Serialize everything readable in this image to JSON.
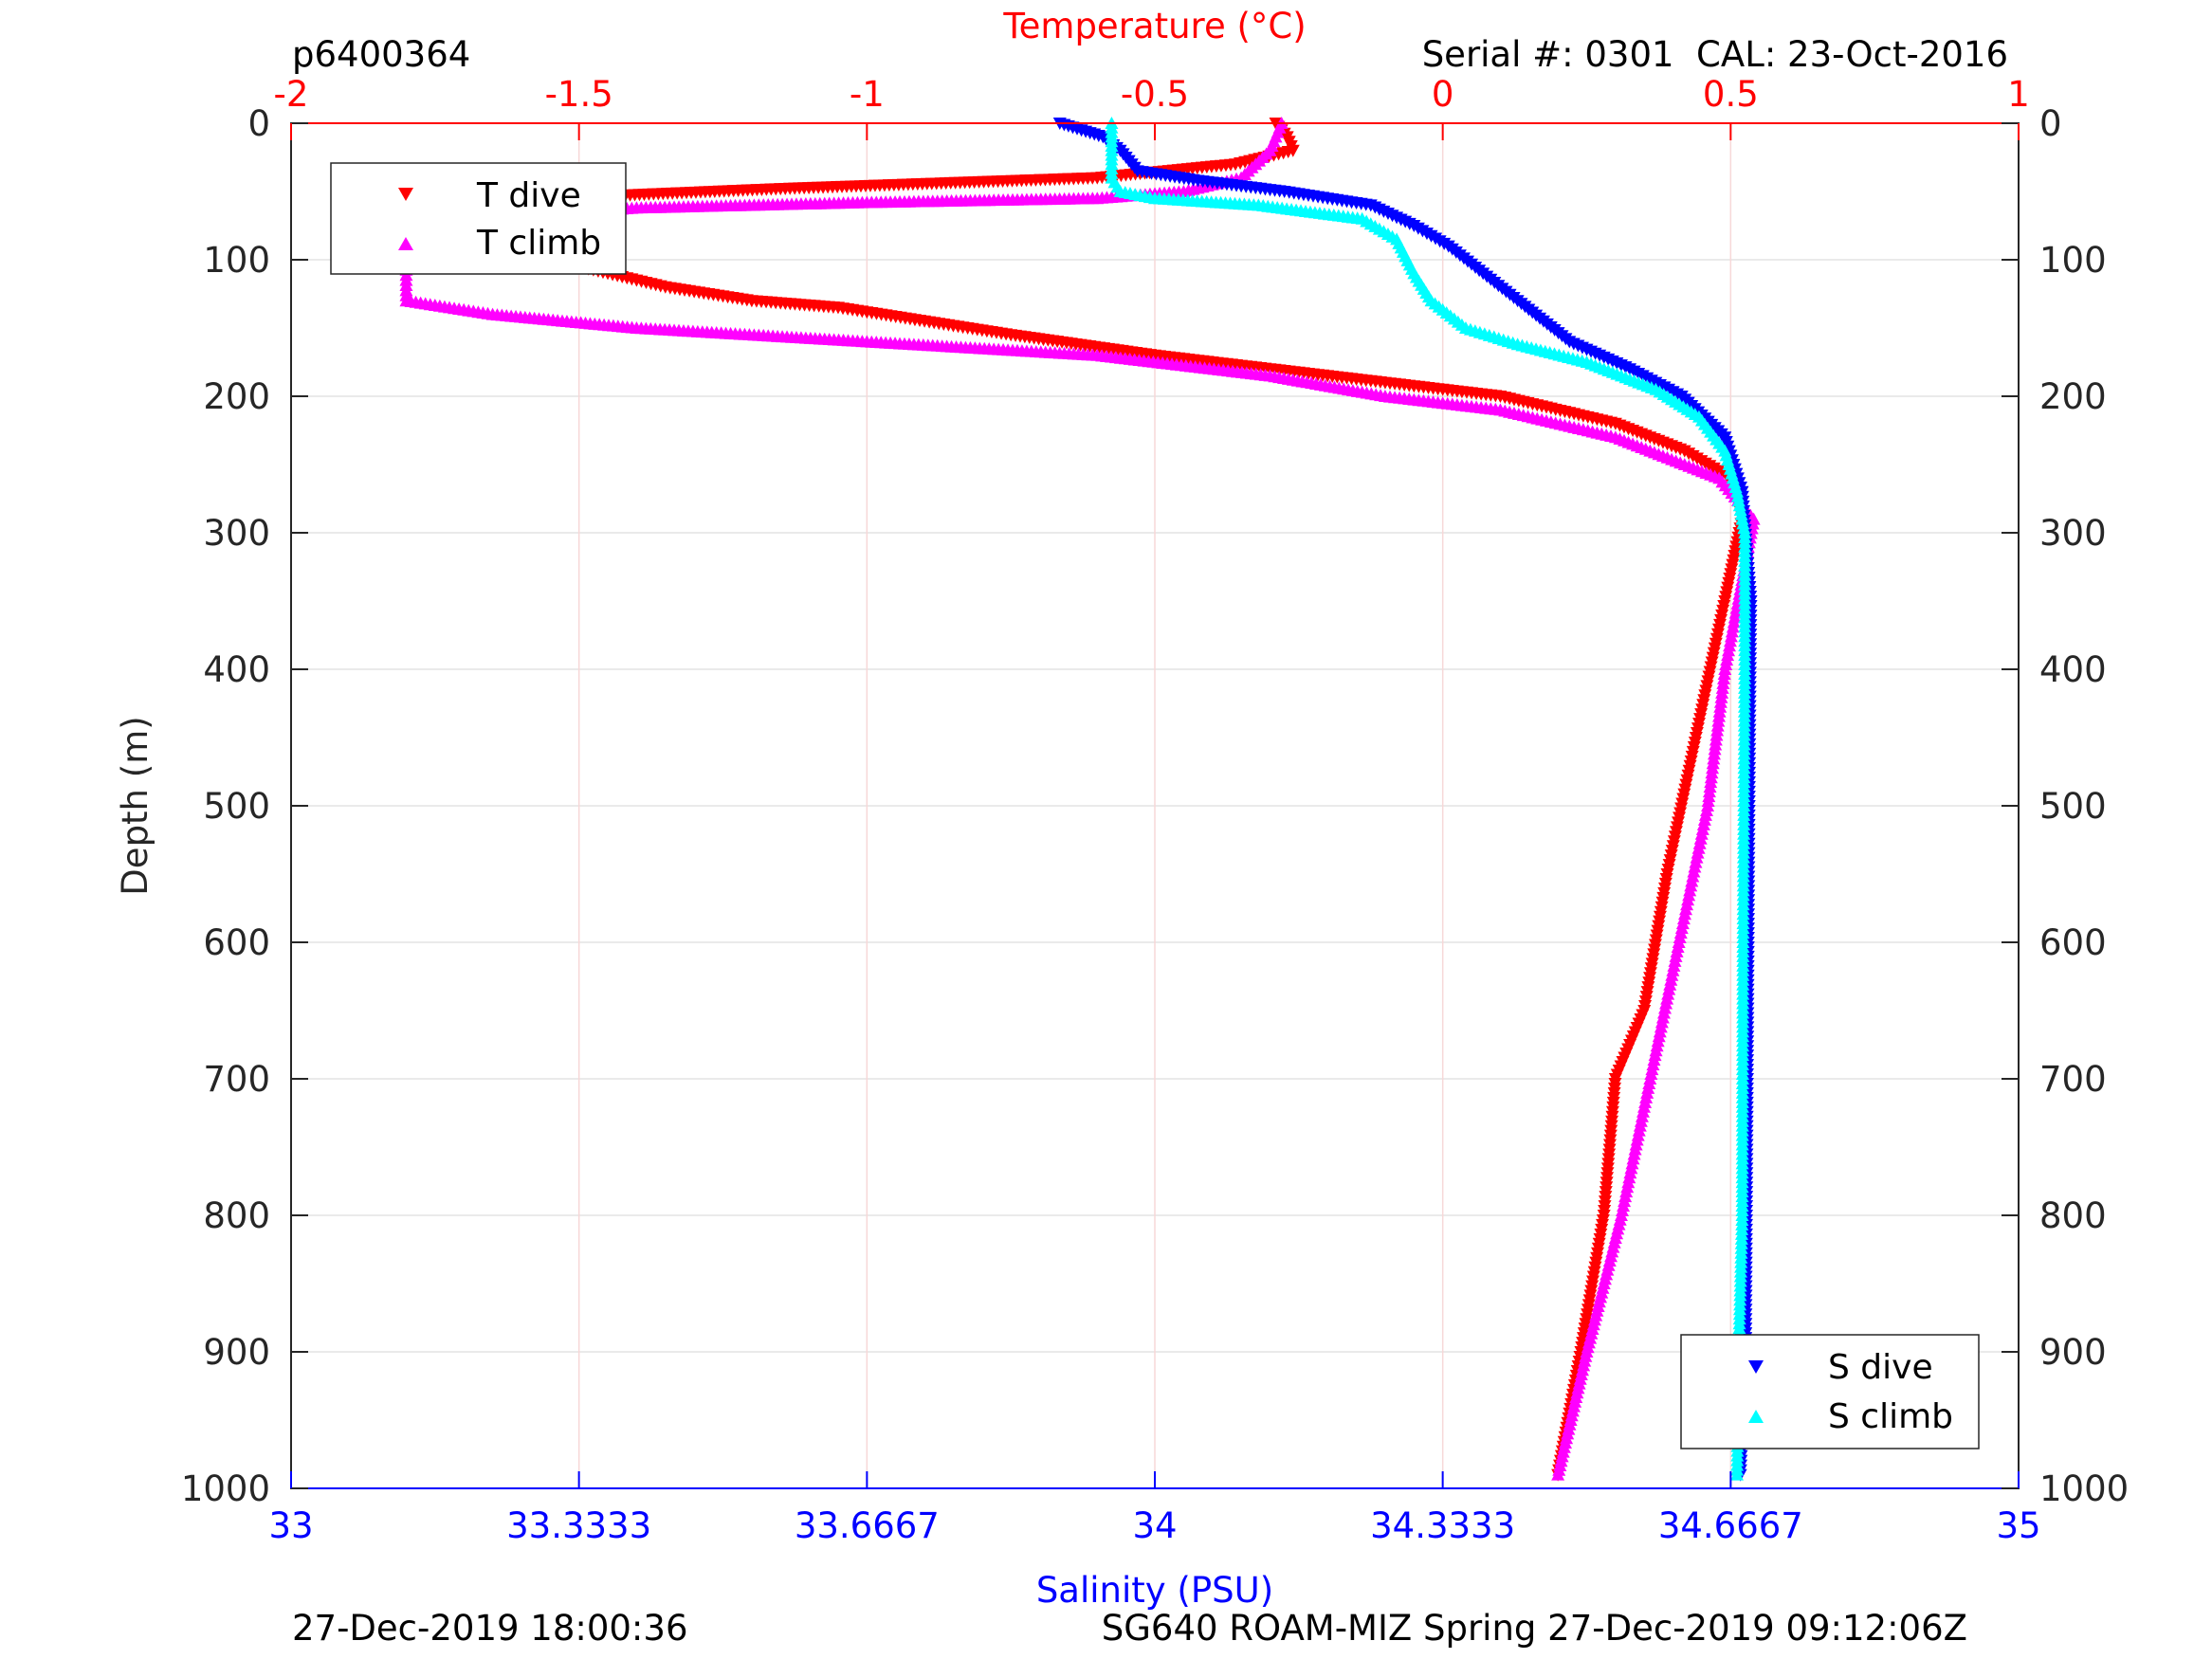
{
  "header": {
    "profile_id": "p6400364",
    "serial_cal": "Serial #: 0301  CAL: 23-Oct-2016"
  },
  "footer": {
    "left": "27-Dec-2019 18:00:36",
    "right": "SG640 ROAM-MIZ Spring 27-Dec-2019 09:12:06Z"
  },
  "colors": {
    "t_dive": "#ff0000",
    "t_climb": "#ff00ff",
    "s_dive": "#0000ff",
    "s_climb": "#00ffff",
    "temperature_axis": "#ff0000",
    "salinity_axis": "#0000ff",
    "depth_axis": "#262626"
  },
  "chart_data": {
    "type": "scatter",
    "title": "",
    "y_axis": {
      "label": "Depth (m)",
      "range": [
        0,
        1000
      ],
      "reversed": true,
      "ticks": [
        0,
        100,
        200,
        300,
        400,
        500,
        600,
        700,
        800,
        900,
        1000
      ],
      "tick_labels": [
        "0",
        "100",
        "200",
        "300",
        "400",
        "500",
        "600",
        "700",
        "800",
        "900",
        "1000"
      ]
    },
    "x_top": {
      "label": "Temperature (°C)",
      "range": [
        -2,
        1
      ],
      "ticks": [
        -2,
        -1.5,
        -1,
        -0.5,
        0,
        0.5,
        1
      ],
      "tick_labels": [
        "-2",
        "-1.5",
        "-1",
        "-0.5",
        "0",
        "0.5",
        "1"
      ]
    },
    "x_bottom": {
      "label": "Salinity (PSU)",
      "range": [
        33,
        35
      ],
      "ticks": [
        33,
        33.3333,
        33.6667,
        34,
        34.3333,
        34.6667,
        35
      ],
      "tick_labels": [
        "33",
        "33.3333",
        "33.6667",
        "34",
        "34.3333",
        "34.6667",
        "35"
      ]
    },
    "grid": true,
    "legends": [
      {
        "placement": "top-left",
        "entries": [
          "T dive",
          "T climb"
        ]
      },
      {
        "placement": "bottom-right",
        "entries": [
          "S dive",
          "S climb"
        ]
      }
    ],
    "series": [
      {
        "name": "T dive",
        "axis": "temperature",
        "marker": "triangle-down",
        "points": [
          [
            -0.29,
            0
          ],
          [
            -0.27,
            10
          ],
          [
            -0.26,
            20
          ],
          [
            -0.36,
            30
          ],
          [
            -0.6,
            40
          ],
          [
            -1.15,
            48
          ],
          [
            -1.55,
            55
          ],
          [
            -1.65,
            62
          ],
          [
            -1.68,
            70
          ],
          [
            -1.7,
            80
          ],
          [
            -1.65,
            90
          ],
          [
            -1.55,
            100
          ],
          [
            -1.45,
            110
          ],
          [
            -1.35,
            120
          ],
          [
            -1.2,
            130
          ],
          [
            -1.05,
            135
          ],
          [
            -0.9,
            145
          ],
          [
            -0.75,
            155
          ],
          [
            -0.5,
            170
          ],
          [
            -0.3,
            180
          ],
          [
            -0.1,
            190
          ],
          [
            0.1,
            200
          ],
          [
            0.3,
            220
          ],
          [
            0.42,
            240
          ],
          [
            0.5,
            260
          ],
          [
            0.52,
            290
          ],
          [
            0.49,
            350
          ],
          [
            0.44,
            450
          ],
          [
            0.39,
            550
          ],
          [
            0.35,
            650
          ],
          [
            0.3,
            700
          ],
          [
            0.28,
            800
          ],
          [
            0.24,
            900
          ],
          [
            0.2,
            990
          ]
        ]
      },
      {
        "name": "T climb",
        "axis": "temperature",
        "marker": "triangle-up",
        "points": [
          [
            0.2,
            990
          ],
          [
            0.25,
            900
          ],
          [
            0.31,
            800
          ],
          [
            0.36,
            700
          ],
          [
            0.41,
            600
          ],
          [
            0.46,
            500
          ],
          [
            0.49,
            400
          ],
          [
            0.54,
            290
          ],
          [
            0.48,
            260
          ],
          [
            0.3,
            230
          ],
          [
            0.1,
            210
          ],
          [
            -0.1,
            200
          ],
          [
            -0.3,
            185
          ],
          [
            -0.6,
            170
          ],
          [
            -1.0,
            160
          ],
          [
            -1.4,
            150
          ],
          [
            -1.65,
            140
          ],
          [
            -1.8,
            130
          ],
          [
            -1.8,
            115
          ],
          [
            -1.8,
            100
          ],
          [
            -1.78,
            85
          ],
          [
            -1.65,
            70
          ],
          [
            -1.4,
            62
          ],
          [
            -1.0,
            58
          ],
          [
            -0.6,
            55
          ],
          [
            -0.45,
            50
          ],
          [
            -0.35,
            40
          ],
          [
            -0.3,
            20
          ],
          [
            -0.28,
            0
          ]
        ]
      },
      {
        "name": "S dive",
        "axis": "salinity",
        "marker": "triangle-down",
        "points": [
          [
            33.89,
            0
          ],
          [
            33.94,
            10
          ],
          [
            33.96,
            20
          ],
          [
            33.98,
            35
          ],
          [
            34.05,
            42
          ],
          [
            34.15,
            50
          ],
          [
            34.25,
            60
          ],
          [
            34.3,
            75
          ],
          [
            34.34,
            90
          ],
          [
            34.38,
            110
          ],
          [
            34.42,
            130
          ],
          [
            34.48,
            160
          ],
          [
            34.55,
            180
          ],
          [
            34.61,
            200
          ],
          [
            34.66,
            230
          ],
          [
            34.68,
            270
          ],
          [
            34.69,
            350
          ],
          [
            34.688,
            500
          ],
          [
            34.686,
            700
          ],
          [
            34.684,
            900
          ],
          [
            34.678,
            990
          ]
        ]
      },
      {
        "name": "S climb",
        "axis": "salinity",
        "marker": "triangle-up",
        "points": [
          [
            34.674,
            990
          ],
          [
            34.676,
            900
          ],
          [
            34.68,
            800
          ],
          [
            34.681,
            600
          ],
          [
            34.683,
            400
          ],
          [
            34.683,
            300
          ],
          [
            34.674,
            270
          ],
          [
            34.66,
            240
          ],
          [
            34.63,
            215
          ],
          [
            34.58,
            195
          ],
          [
            34.5,
            175
          ],
          [
            34.42,
            162
          ],
          [
            34.36,
            150
          ],
          [
            34.32,
            130
          ],
          [
            34.3,
            110
          ],
          [
            34.28,
            85
          ],
          [
            34.24,
            70
          ],
          [
            34.12,
            60
          ],
          [
            34.0,
            55
          ],
          [
            33.96,
            50
          ],
          [
            33.95,
            40
          ],
          [
            33.95,
            20
          ],
          [
            33.95,
            0
          ]
        ]
      }
    ]
  }
}
